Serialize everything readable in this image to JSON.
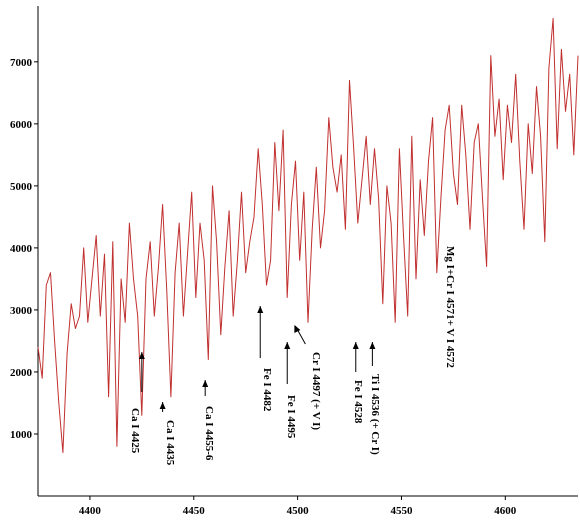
{
  "chart_data": {
    "type": "line",
    "title": "",
    "xlabel": "",
    "ylabel": "",
    "xlim": [
      4375,
      4635
    ],
    "ylim": [
      0,
      7900
    ],
    "x_ticks": [
      4400,
      4450,
      4500,
      4550,
      4600
    ],
    "y_ticks": [
      1000,
      2000,
      3000,
      4000,
      5000,
      6000,
      7000
    ],
    "x_tick_labels": [
      "4400",
      "4450",
      "4500",
      "4550",
      "4600"
    ],
    "y_tick_labels": [
      "1000",
      "2000",
      "3000",
      "4000",
      "5000",
      "6000",
      "7000"
    ],
    "grid": false,
    "series_color": "#c0302f",
    "series": [
      {
        "x": [
          4375,
          4377,
          4379,
          4381,
          4383,
          4385,
          4387,
          4389,
          4391,
          4393,
          4395,
          4397,
          4399,
          4401,
          4403,
          4405,
          4407,
          4409,
          4411,
          4413,
          4415,
          4417,
          4419,
          4421,
          4423,
          4425,
          4427,
          4429,
          4431,
          4433,
          4435,
          4437,
          4439,
          4441,
          4443,
          4445,
          4447,
          4449,
          4451,
          4453,
          4455,
          4457,
          4459,
          4461,
          4463,
          4465,
          4467,
          4469,
          4471,
          4473,
          4475,
          4477,
          4479,
          4481,
          4483,
          4485,
          4487,
          4489,
          4491,
          4493,
          4495,
          4497,
          4499,
          4501,
          4503,
          4505,
          4507,
          4509,
          4511,
          4513,
          4515,
          4517,
          4519,
          4521,
          4523,
          4525,
          4527,
          4529,
          4531,
          4533,
          4535,
          4537,
          4539,
          4541,
          4543,
          4545,
          4547,
          4549,
          4551,
          4553,
          4555,
          4557,
          4559,
          4561,
          4563,
          4565,
          4567,
          4569,
          4571,
          4573,
          4575,
          4577,
          4579,
          4581,
          4583,
          4585,
          4587,
          4589,
          4591,
          4593,
          4595,
          4597,
          4599,
          4601,
          4603,
          4605,
          4607,
          4609,
          4611,
          4613,
          4615,
          4617,
          4619,
          4621,
          4623,
          4625,
          4627,
          4629,
          4631,
          4633,
          4635
        ],
        "values": [
          2400,
          1900,
          3400,
          3600,
          2500,
          1500,
          700,
          2300,
          3100,
          2700,
          2900,
          4000,
          2800,
          3500,
          4200,
          2900,
          3900,
          1600,
          4100,
          800,
          3500,
          2800,
          4400,
          3500,
          2900,
          1300,
          3500,
          4100,
          2900,
          3700,
          4700,
          3300,
          1600,
          3600,
          4400,
          2900,
          3900,
          4900,
          3200,
          4400,
          3800,
          2200,
          5000,
          4100,
          2600,
          3700,
          4600,
          2900,
          3800,
          4900,
          3600,
          4100,
          4500,
          5600,
          4700,
          3400,
          3800,
          5700,
          4600,
          5900,
          3200,
          4700,
          5400,
          3800,
          4900,
          2800,
          4300,
          5300,
          4000,
          4600,
          6100,
          5300,
          4900,
          5500,
          4300,
          6700,
          5600,
          4400,
          5100,
          5800,
          4700,
          5600,
          4800,
          3100,
          5000,
          4400,
          2800,
          5600,
          4200,
          2900,
          5800,
          3500,
          5100,
          4200,
          5400,
          6100,
          3600,
          4800,
          5900,
          6300,
          5200,
          4700,
          6300,
          5500,
          4300,
          5700,
          6000,
          4800,
          3700,
          7100,
          5800,
          6400,
          5100,
          6300,
          5700,
          6800,
          5400,
          4300,
          6000,
          5200,
          6600,
          5800,
          4100,
          6900,
          7700,
          5600,
          7200,
          6200,
          6800,
          5500,
          7100
        ]
      }
    ],
    "annotations": [
      {
        "text": "Ca I 4425",
        "x": 4425
      },
      {
        "text": "Ca I 4435",
        "x": 4435
      },
      {
        "text": "Ca I 4455-6",
        "x": 4455.5
      },
      {
        "text": "Fe I 4482",
        "x": 4482
      },
      {
        "text": "Fe I 4495",
        "x": 4495
      },
      {
        "text": "Cr I 4497 (+ V I)",
        "x": 4497
      },
      {
        "text": "Fe I 4528",
        "x": 4528
      },
      {
        "text": "Ti I 4536 (+ Cr I)",
        "x": 4536
      },
      {
        "text": "Mg I+Cr I 4571+ V I 4572",
        "x": 4571.5
      }
    ]
  }
}
